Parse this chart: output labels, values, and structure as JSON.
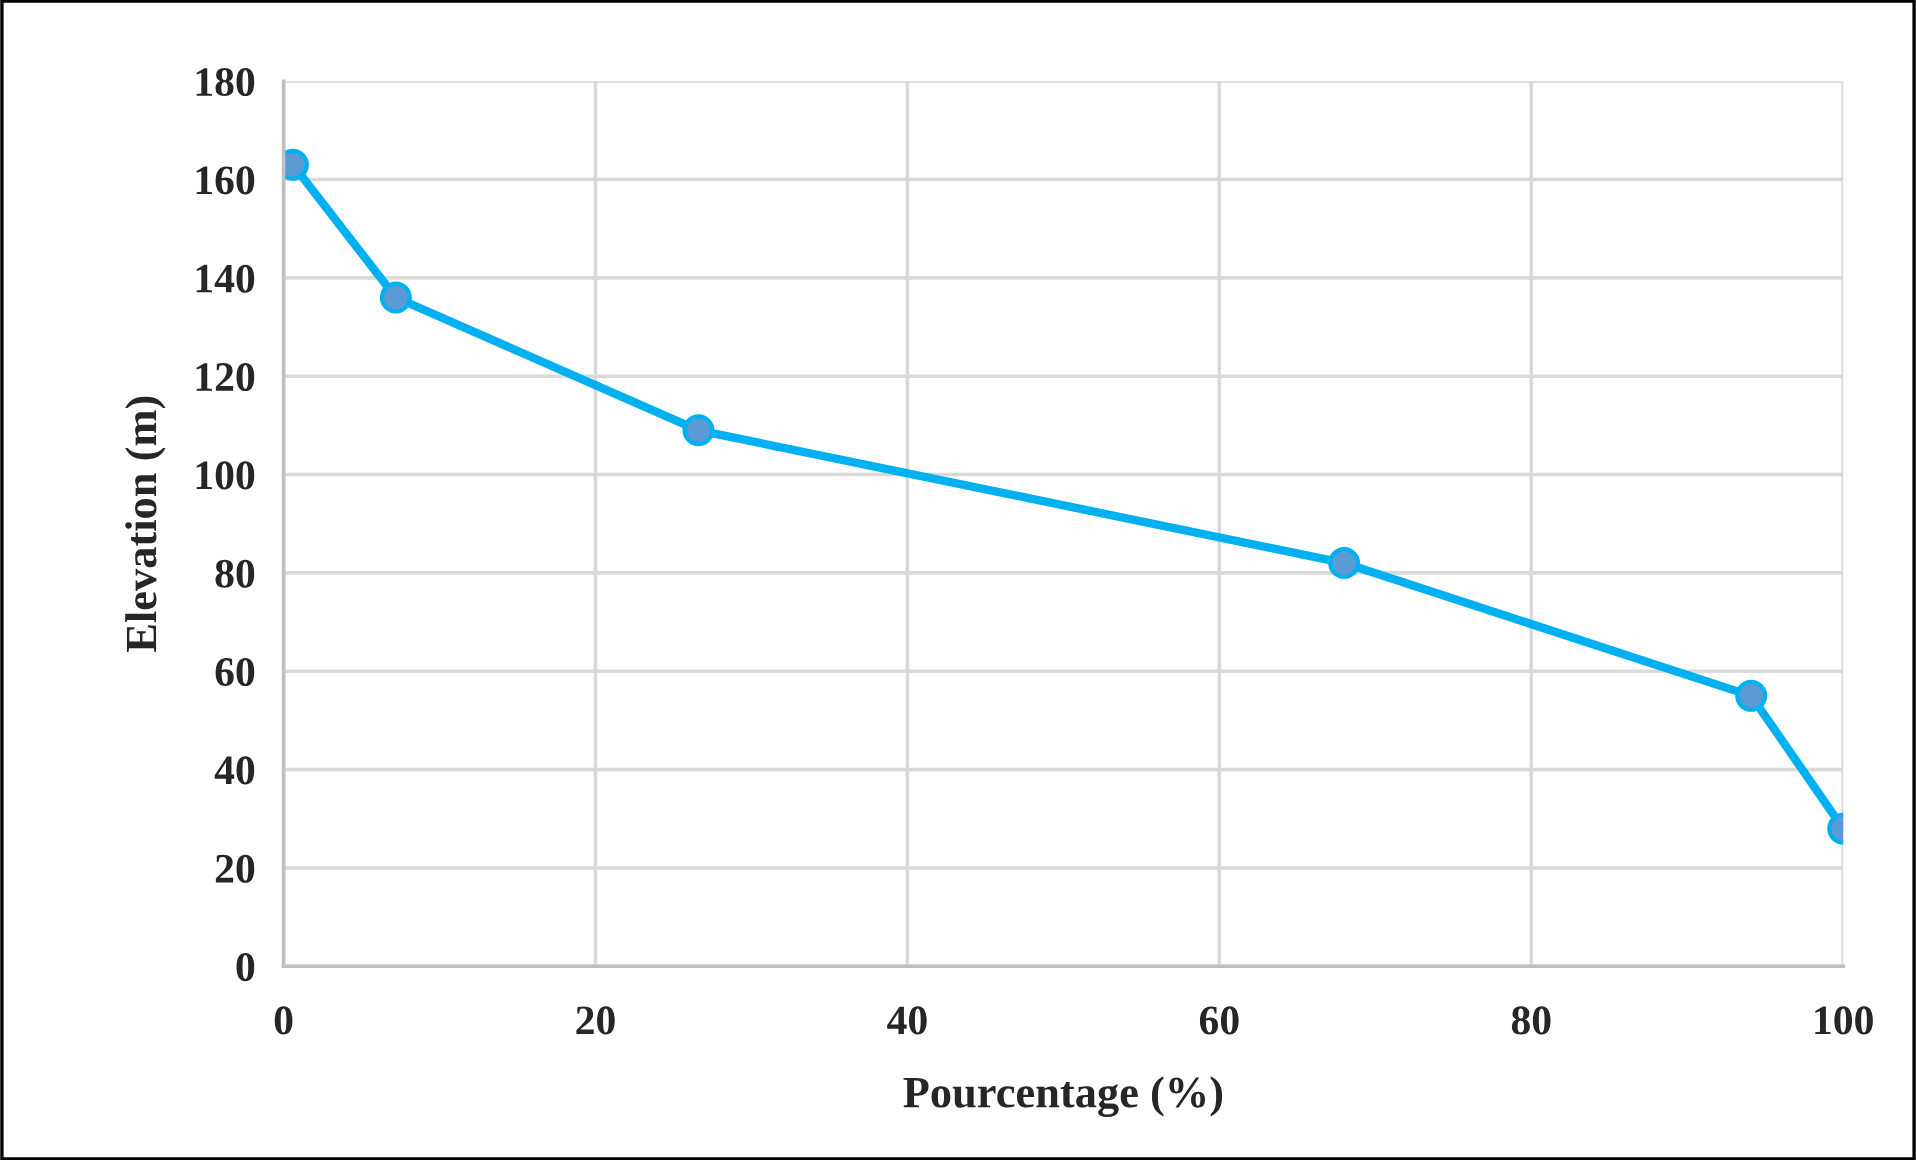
{
  "chart_data": {
    "type": "line",
    "xlabel": "Pourcentage (%)",
    "ylabel": "Elevation (m)",
    "x": [
      0.6,
      7.2,
      26.6,
      68.0,
      94.1,
      100
    ],
    "series": [
      {
        "color": "#00b0f0",
        "values": [
          163,
          136,
          109,
          82,
          55,
          28
        ]
      }
    ],
    "xlim": [
      0,
      100
    ],
    "ylim": [
      0,
      180
    ],
    "xticks": [
      0,
      20,
      40,
      60,
      80,
      100
    ],
    "yticks": [
      0,
      20,
      40,
      60,
      80,
      100,
      120,
      140,
      160,
      180
    ],
    "grid": true,
    "marker": "circle",
    "line_style": "solid"
  }
}
